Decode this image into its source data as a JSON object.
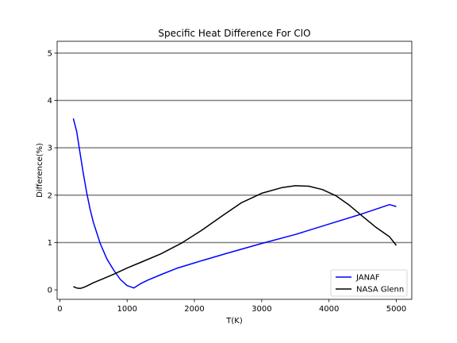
{
  "chart_data": {
    "type": "line",
    "title": "Specific Heat Difference For ClO",
    "xlabel": "T(K)",
    "ylabel": "Difference(%)",
    "xlim": [
      -40,
      5230
    ],
    "ylim": [
      -0.2,
      5.25
    ],
    "xticks": [
      0,
      1000,
      2000,
      3000,
      4000,
      5000
    ],
    "yticks": [
      0,
      1,
      2,
      3,
      4,
      5
    ],
    "grid": "horizontal-at-yticks",
    "legend": "bottom-right",
    "series": [
      {
        "name": "JANAF",
        "color": "#0000ff",
        "x": [
          200,
          250,
          300,
          350,
          400,
          450,
          500,
          600,
          700,
          800,
          900,
          1000,
          1100,
          1200,
          1300,
          1500,
          1750,
          2000,
          2500,
          3000,
          3500,
          4000,
          4500,
          4900,
          5000
        ],
        "y": [
          3.62,
          3.35,
          2.9,
          2.45,
          2.05,
          1.7,
          1.42,
          0.98,
          0.65,
          0.42,
          0.22,
          0.09,
          0.04,
          0.13,
          0.2,
          0.32,
          0.46,
          0.57,
          0.78,
          0.98,
          1.17,
          1.39,
          1.61,
          1.8,
          1.76
        ]
      },
      {
        "name": "NASA Glenn",
        "color": "#000000",
        "x": [
          200,
          250,
          300,
          350,
          400,
          500,
          600,
          800,
          1000,
          1200,
          1500,
          1800,
          2100,
          2400,
          2700,
          3000,
          3300,
          3500,
          3700,
          3900,
          4100,
          4300,
          4500,
          4700,
          4900,
          5000
        ],
        "y": [
          0.07,
          0.04,
          0.03,
          0.05,
          0.08,
          0.15,
          0.21,
          0.33,
          0.46,
          0.58,
          0.76,
          0.98,
          1.25,
          1.55,
          1.84,
          2.04,
          2.16,
          2.2,
          2.19,
          2.12,
          1.99,
          1.79,
          1.55,
          1.32,
          1.12,
          0.94
        ]
      }
    ]
  }
}
